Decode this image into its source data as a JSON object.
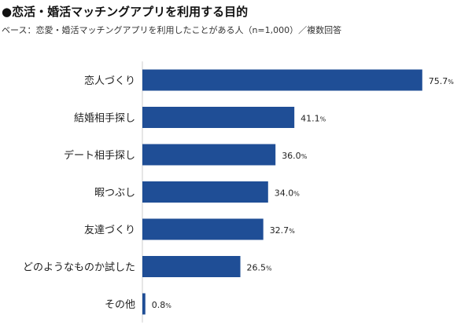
{
  "title": "●恋活・婚活マッチングアプリを利用する目的",
  "subtitle": "ベース：恋愛・婚活マッチングアプリを利用したことがある人（n=1,000）／複数回答",
  "chart_data": {
    "type": "bar",
    "orientation": "horizontal",
    "categories": [
      "恋人づくり",
      "結婚相手探し",
      "デート相手探し",
      "暇つぶし",
      "友達づくり",
      "どのようなものか試した",
      "その他"
    ],
    "values": [
      75.7,
      41.1,
      36.0,
      34.0,
      32.7,
      26.5,
      0.8
    ],
    "value_labels": [
      "75.7",
      "41.1",
      "36.0",
      "34.0",
      "32.7",
      "26.5",
      "0.8"
    ],
    "unit": "%",
    "bar_color": "#1f4e96",
    "xlim": [
      0,
      100
    ],
    "grid": false,
    "legend": "none"
  }
}
